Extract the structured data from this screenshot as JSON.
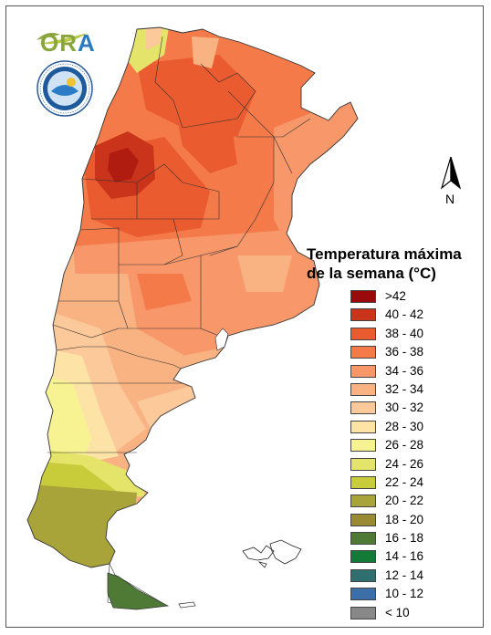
{
  "logo": {
    "brand_text_part1": "OR",
    "brand_text_part2": "A"
  },
  "compass": {
    "label": "N"
  },
  "legend": {
    "title_line1": "Temperatura máxima",
    "title_line2": "de la semana (°C)",
    "items": [
      {
        "label": ">42",
        "color": "#9b0a0a"
      },
      {
        "label": "40 - 42",
        "color": "#c9341a"
      },
      {
        "label": "38 - 40",
        "color": "#ea5b30"
      },
      {
        "label": "36 - 38",
        "color": "#f47a4a"
      },
      {
        "label": "34 - 36",
        "color": "#f7976a"
      },
      {
        "label": "32 - 34",
        "color": "#f9b383"
      },
      {
        "label": "30 - 32",
        "color": "#fbc99a"
      },
      {
        "label": "28 - 30",
        "color": "#fde3a6"
      },
      {
        "label": "26 - 28",
        "color": "#f7f392"
      },
      {
        "label": "24 - 26",
        "color": "#e4e46a"
      },
      {
        "label": "22 - 24",
        "color": "#c8cb3a"
      },
      {
        "label": "20 - 22",
        "color": "#a9a43a"
      },
      {
        "label": "18 - 20",
        "color": "#9b8a34"
      },
      {
        "label": "16 - 18",
        "color": "#4f7a36"
      },
      {
        "label": "14 - 16",
        "color": "#137a37"
      },
      {
        "label": "12 - 14",
        "color": "#2f6f6f"
      },
      {
        "label": "10 - 12",
        "color": "#3c6ea8"
      },
      {
        "label": "< 10",
        "color": "#888888"
      }
    ]
  }
}
